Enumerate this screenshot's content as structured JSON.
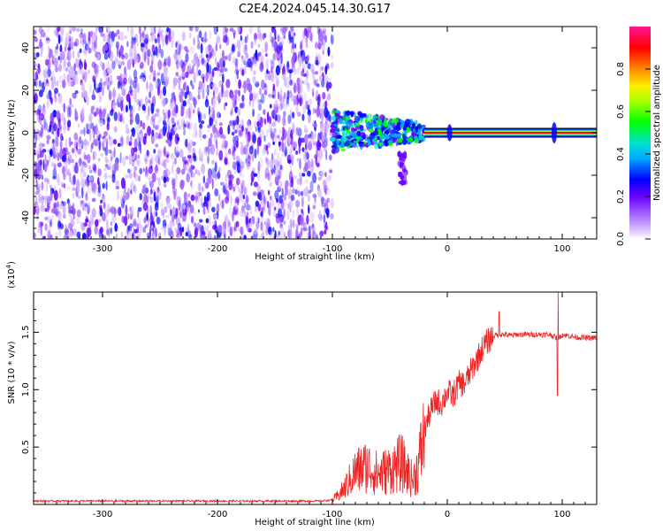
{
  "title": "C2E4.2024.045.14.30.G17",
  "chart_data": [
    {
      "type": "heatmap",
      "title": "",
      "xlabel": "Height of straight line (km)",
      "ylabel": "Frequency (Hz)",
      "xlim": [
        -360,
        130
      ],
      "ylim": [
        -50,
        50
      ],
      "xticks": [
        -300,
        -200,
        -100,
        0,
        100
      ],
      "yticks": [
        -40,
        -20,
        0,
        20,
        40
      ],
      "colorbar": {
        "label": "Normalized spectral amplitude",
        "range": [
          0.0,
          1.0
        ],
        "ticks": [
          "0.0",
          "0.2",
          "0.4",
          "0.6",
          "0.8"
        ],
        "colormap": [
          "#ffffff",
          "#d4b8ff",
          "#a060ff",
          "#6a00ff",
          "#0000ff",
          "#00aaff",
          "#00e0d0",
          "#00ff00",
          "#aaff00",
          "#ffee00",
          "#ff8800",
          "#ff0000",
          "#ff1493"
        ]
      },
      "regions": [
        {
          "name": "noise",
          "x": [
            -360,
            -100
          ],
          "y": [
            -50,
            50
          ],
          "amplitude": 0.1
        },
        {
          "name": "onset",
          "x": [
            -100,
            -20
          ],
          "y": [
            -8,
            10
          ],
          "amplitude": 0.4
        },
        {
          "name": "tail",
          "x": [
            -42,
            -36
          ],
          "y": [
            -24,
            -10
          ],
          "amplitude": 0.2
        },
        {
          "name": "carrier",
          "x": [
            -20,
            130
          ],
          "y": [
            -1.5,
            1.5
          ],
          "amplitude": 0.9
        }
      ]
    },
    {
      "type": "line",
      "title": "",
      "xlabel": "Height of straight line (km)",
      "ylabel": "SNR (10 * v/v)",
      "yscale_label": "(x10",
      "yscale_exp": "4",
      "yscale_close": ")",
      "xlim": [
        -360,
        130
      ],
      "ylim": [
        0,
        1.85
      ],
      "xticks": [
        -300,
        -200,
        -100,
        0,
        100
      ],
      "yticks": [
        "0.5",
        "1.0",
        "1.5"
      ],
      "series": [
        {
          "color": "#ee2222",
          "x": [
            -360,
            -300,
            -200,
            -110,
            -100,
            -95,
            -90,
            -80,
            -70,
            -60,
            -50,
            -40,
            -35,
            -30,
            -25,
            -20,
            -15,
            -10,
            -5,
            0,
            5,
            10,
            15,
            20,
            25,
            30,
            35,
            40,
            45,
            50,
            55,
            60,
            70,
            80,
            90,
            95,
            97,
            100,
            110,
            120,
            130
          ],
          "y": [
            0.03,
            0.03,
            0.03,
            0.03,
            0.04,
            0.08,
            0.14,
            0.3,
            0.35,
            0.28,
            0.32,
            0.38,
            0.3,
            0.22,
            0.36,
            0.65,
            0.8,
            0.9,
            0.88,
            0.98,
            0.95,
            1.05,
            1.05,
            1.15,
            1.25,
            1.35,
            1.42,
            1.47,
            1.48,
            1.48,
            1.47,
            1.48,
            1.48,
            1.48,
            1.48,
            1.45,
            1.45,
            1.48,
            1.46,
            1.45,
            1.45
          ]
        }
      ]
    }
  ]
}
